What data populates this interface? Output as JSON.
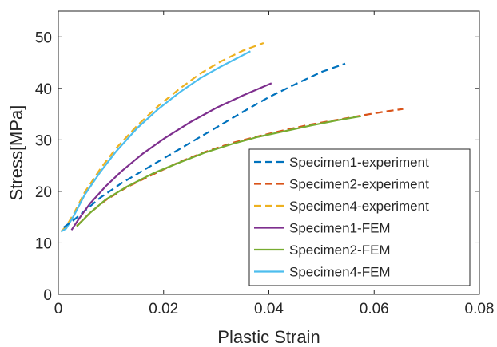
{
  "chart_data": {
    "type": "line",
    "xlabel": "Plastic Strain",
    "ylabel": "Stress[MPa]",
    "xlim": [
      0,
      0.08
    ],
    "ylim": [
      0,
      55
    ],
    "xticks": [
      0,
      0.02,
      0.04,
      0.06,
      0.08
    ],
    "xtick_labels": [
      "0",
      "0.02",
      "0.04",
      "0.06",
      "0.08"
    ],
    "yticks": [
      0,
      10,
      20,
      30,
      40,
      50
    ],
    "ytick_labels": [
      "0",
      "10",
      "20",
      "30",
      "40",
      "50"
    ],
    "grid": false,
    "legend_position": "bottom-right",
    "series": [
      {
        "name": "Specimen1-experiment",
        "color": "#0072BD",
        "style": "dashed",
        "x": [
          0.001,
          0.003,
          0.005,
          0.008,
          0.012,
          0.016,
          0.02,
          0.025,
          0.03,
          0.035,
          0.04,
          0.045,
          0.05,
          0.0545
        ],
        "y": [
          13.0,
          14.5,
          16.2,
          18.8,
          21.6,
          24.0,
          26.4,
          29.4,
          32.4,
          35.4,
          38.3,
          40.8,
          43.2,
          44.8
        ]
      },
      {
        "name": "Specimen2-experiment",
        "color": "#D95319",
        "style": "dashed",
        "x": [
          0.0035,
          0.006,
          0.009,
          0.013,
          0.018,
          0.023,
          0.028,
          0.033,
          0.038,
          0.043,
          0.048,
          0.053,
          0.058,
          0.062,
          0.0655
        ],
        "y": [
          13.3,
          15.8,
          18.3,
          20.8,
          23.3,
          25.7,
          27.7,
          29.4,
          30.7,
          31.9,
          33.0,
          33.9,
          34.8,
          35.5,
          36.0
        ]
      },
      {
        "name": "Specimen4-experiment",
        "color": "#EDB120",
        "style": "dashed",
        "x": [
          0.0005,
          0.0015,
          0.003,
          0.005,
          0.008,
          0.011,
          0.015,
          0.019,
          0.023,
          0.027,
          0.031,
          0.035,
          0.039
        ],
        "y": [
          12.2,
          13.2,
          15.8,
          19.8,
          24.4,
          28.4,
          32.8,
          36.6,
          39.9,
          42.9,
          45.3,
          47.3,
          48.8
        ]
      },
      {
        "name": "Specimen1-FEM",
        "color": "#7E2F8E",
        "style": "solid",
        "x": [
          0.0025,
          0.004,
          0.006,
          0.009,
          0.012,
          0.016,
          0.02,
          0.025,
          0.03,
          0.035,
          0.0405
        ],
        "y": [
          12.5,
          14.8,
          17.6,
          21.0,
          23.9,
          27.3,
          30.2,
          33.4,
          36.2,
          38.6,
          41.0
        ]
      },
      {
        "name": "Specimen2-FEM",
        "color": "#77AC30",
        "style": "solid",
        "x": [
          0.0035,
          0.006,
          0.009,
          0.013,
          0.018,
          0.023,
          0.028,
          0.033,
          0.038,
          0.043,
          0.048,
          0.053,
          0.0575
        ],
        "y": [
          13.2,
          15.8,
          18.4,
          20.9,
          23.5,
          25.6,
          27.6,
          29.2,
          30.6,
          31.7,
          32.8,
          33.8,
          34.6
        ]
      },
      {
        "name": "Specimen4-FEM",
        "color": "#4DBEEE",
        "style": "solid",
        "x": [
          0.0005,
          0.0015,
          0.003,
          0.005,
          0.008,
          0.011,
          0.015,
          0.019,
          0.023,
          0.027,
          0.031,
          0.0365
        ],
        "y": [
          12.2,
          12.8,
          15.4,
          19.3,
          23.8,
          27.8,
          32.3,
          36.0,
          39.2,
          42.0,
          44.3,
          47.2
        ]
      }
    ]
  }
}
